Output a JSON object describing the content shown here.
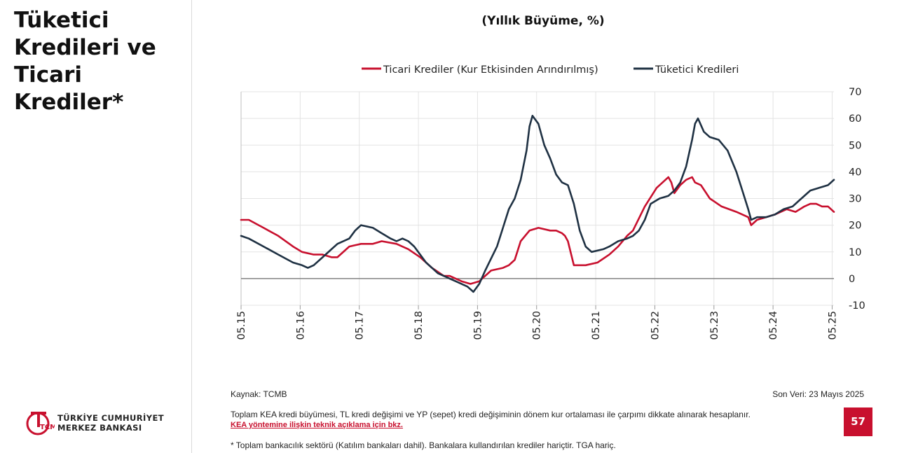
{
  "slide": {
    "title": "Tüketici\nKredileri ve\nTicari Krediler*",
    "subtitle": "(Yıllık Büyüme, %)",
    "source": "Kaynak: TCMB",
    "last_data": "Son Veri: 23 Mayıs 2025",
    "footnote_1": "Toplam KEA kredi büyümesi, TL kredi değişimi ve YP (sepet) kredi değişiminin dönem kur ortalaması ile çarpımı dikkate alınarak hesaplanır.",
    "footnote_link": "KEA yöntemine ilişkin teknik açıklama için bkz.",
    "footnote_2": "* Toplam bankacılık sektörü (Katılım bankaları dahil). Bankalara kullandırılan krediler hariçtir. TGA hariç.",
    "page_number": "57",
    "logo_line1": "TÜRKİYE CUMHURİYET",
    "logo_line2": "MERKEZ BANKASI",
    "logo_mark": "TCMB"
  },
  "colors": {
    "commercial": "#c8102e",
    "consumer": "#1f3143",
    "accent": "#c8102e"
  },
  "chart_data": {
    "type": "line",
    "x_tick_labels": [
      "05.15",
      "05.16",
      "05.17",
      "05.18",
      "05.19",
      "05.20",
      "05.21",
      "05.22",
      "05.23",
      "05.24",
      "05.25"
    ],
    "x_range": [
      2015.37,
      2025.4
    ],
    "ylim": [
      -10,
      70
    ],
    "y_ticks": [
      -10,
      0,
      10,
      20,
      30,
      40,
      50,
      60,
      70
    ],
    "grid": true,
    "y_axis_side": "right",
    "legend_position": "top",
    "reference_line": 0,
    "series": [
      {
        "name": "Ticari Krediler (Kur Etkisinden Arındırılmış)",
        "color_key": "commercial",
        "x": [
          2015.37,
          2015.5,
          2015.75,
          2016.0,
          2016.25,
          2016.4,
          2016.6,
          2016.75,
          2016.9,
          2017.0,
          2017.2,
          2017.4,
          2017.6,
          2017.75,
          2018.0,
          2018.2,
          2018.4,
          2018.6,
          2018.8,
          2018.9,
          2019.0,
          2019.1,
          2019.25,
          2019.4,
          2019.6,
          2019.8,
          2019.9,
          2019.95,
          2020.0,
          2020.1,
          2020.25,
          2020.4,
          2020.6,
          2020.7,
          2020.8,
          2020.85,
          2020.9,
          2021.0,
          2021.2,
          2021.4,
          2021.6,
          2021.75,
          2021.9,
          2022.0,
          2022.2,
          2022.4,
          2022.55,
          2022.6,
          2022.65,
          2022.7,
          2022.8,
          2022.9,
          2023.0,
          2023.05,
          2023.15,
          2023.3,
          2023.5,
          2023.75,
          2023.95,
          2024.0,
          2024.1,
          2024.25,
          2024.4,
          2024.6,
          2024.75,
          2024.9,
          2025.0,
          2025.1,
          2025.2,
          2025.3,
          2025.4
        ],
        "y": [
          22,
          22,
          19,
          16,
          12,
          10,
          9,
          9,
          8,
          8,
          12,
          13,
          13,
          14,
          13,
          11,
          8,
          4,
          1,
          1,
          0,
          -1,
          -2,
          -1,
          3,
          4,
          5,
          6,
          7,
          14,
          18,
          19,
          18,
          18,
          17,
          16,
          14,
          5,
          5,
          6,
          9,
          12,
          16,
          18,
          27,
          34,
          37,
          38,
          36,
          32,
          35,
          37,
          38,
          36,
          35,
          30,
          27,
          25,
          23,
          20,
          22,
          23,
          24,
          26,
          25,
          27,
          28,
          28,
          27,
          27,
          25
        ]
      },
      {
        "name": "Tüketici Kredileri",
        "color_key": "consumer",
        "x": [
          2015.37,
          2015.5,
          2015.75,
          2016.0,
          2016.25,
          2016.4,
          2016.5,
          2016.6,
          2016.75,
          2016.9,
          2017.0,
          2017.2,
          2017.3,
          2017.4,
          2017.6,
          2017.75,
          2017.9,
          2018.0,
          2018.1,
          2018.2,
          2018.3,
          2018.5,
          2018.7,
          2018.9,
          2019.0,
          2019.2,
          2019.3,
          2019.4,
          2019.5,
          2019.7,
          2019.8,
          2019.9,
          2020.0,
          2020.1,
          2020.2,
          2020.25,
          2020.3,
          2020.4,
          2020.5,
          2020.6,
          2020.7,
          2020.8,
          2020.9,
          2021.0,
          2021.1,
          2021.2,
          2021.3,
          2021.5,
          2021.6,
          2021.75,
          2021.9,
          2022.0,
          2022.1,
          2022.2,
          2022.3,
          2022.45,
          2022.6,
          2022.7,
          2022.8,
          2022.9,
          2023.0,
          2023.05,
          2023.1,
          2023.2,
          2023.3,
          2023.45,
          2023.6,
          2023.75,
          2023.85,
          2023.95,
          2024.0,
          2024.1,
          2024.25,
          2024.4,
          2024.55,
          2024.7,
          2024.85,
          2025.0,
          2025.15,
          2025.3,
          2025.4
        ],
        "y": [
          16,
          15,
          12,
          9,
          6,
          5,
          4,
          5,
          8,
          11,
          13,
          15,
          18,
          20,
          19,
          17,
          15,
          14,
          15,
          14,
          12,
          6,
          2,
          0,
          -1,
          -3,
          -5,
          -2,
          3,
          12,
          19,
          26,
          30,
          37,
          48,
          57,
          61,
          58,
          50,
          45,
          39,
          36,
          35,
          28,
          18,
          12,
          10,
          11,
          12,
          14,
          15,
          16,
          18,
          22,
          28,
          30,
          31,
          33,
          36,
          42,
          52,
          58,
          60,
          55,
          53,
          52,
          48,
          40,
          33,
          26,
          22,
          23,
          23,
          24,
          26,
          27,
          30,
          33,
          34,
          35,
          37
        ]
      }
    ]
  }
}
